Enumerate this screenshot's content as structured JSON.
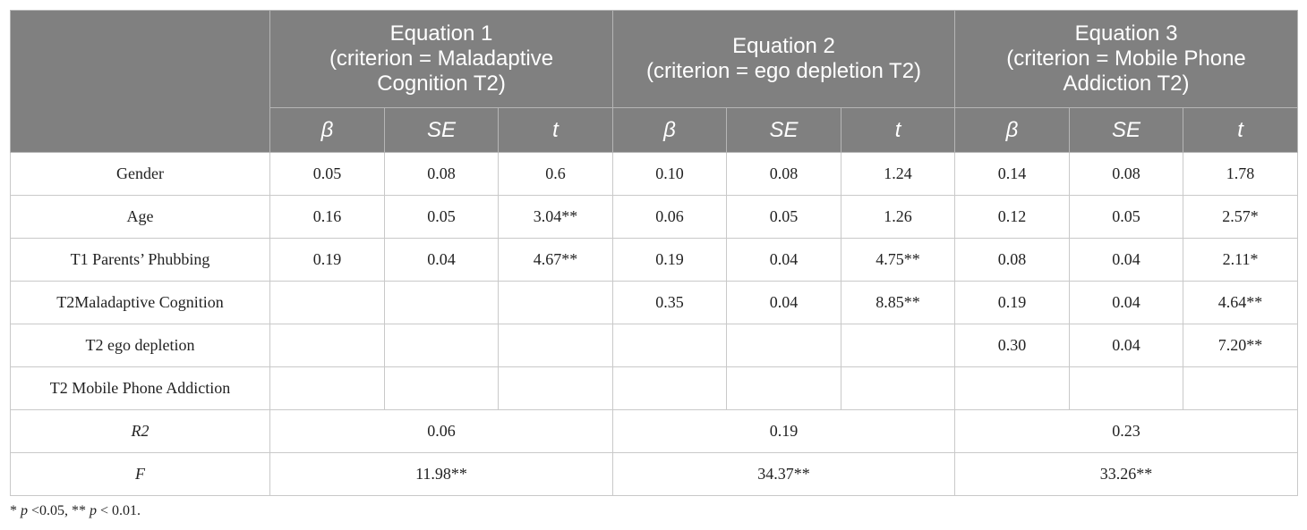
{
  "header": {
    "equations": [
      {
        "line1": "Equation 1",
        "line2": "(criterion = Maladaptive",
        "line3": "Cognition T2)"
      },
      {
        "line1": "Equation 2",
        "line2": "(criterion = ego depletion T2)",
        "line3": ""
      },
      {
        "line1": "Equation 3",
        "line2": "(criterion = Mobile Phone",
        "line3": "Addiction T2)"
      }
    ],
    "sub": [
      "β",
      "SE",
      "t"
    ]
  },
  "rows": [
    {
      "label": "Gender",
      "cells": [
        "0.05",
        "0.08",
        "0.6",
        "0.10",
        "0.08",
        "1.24",
        "0.14",
        "0.08",
        "1.78"
      ]
    },
    {
      "label": "Age",
      "cells": [
        "0.16",
        "0.05",
        "3.04**",
        "0.06",
        "0.05",
        "1.26",
        "0.12",
        "0.05",
        "2.57*"
      ]
    },
    {
      "label": "T1 Parents’ Phubbing",
      "cells": [
        "0.19",
        "0.04",
        "4.67**",
        "0.19",
        "0.04",
        "4.75**",
        "0.08",
        "0.04",
        "2.11*"
      ]
    },
    {
      "label": "T2Maladaptive Cognition",
      "cells": [
        "",
        "",
        "",
        "0.35",
        "0.04",
        "8.85**",
        "0.19",
        "0.04",
        "4.64**"
      ]
    },
    {
      "label": "T2 ego depletion",
      "cells": [
        "",
        "",
        "",
        "",
        "",
        "",
        "0.30",
        "0.04",
        "7.20**"
      ]
    },
    {
      "label": "T2 Mobile Phone Addiction",
      "cells": [
        "",
        "",
        "",
        "",
        "",
        "",
        "",
        "",
        ""
      ]
    }
  ],
  "summary": [
    {
      "label": "R2",
      "values": [
        "0.06",
        "0.19",
        "0.23"
      ]
    },
    {
      "label": "F",
      "values": [
        "11.98**",
        "34.37**",
        "33.26**"
      ]
    }
  ],
  "note": {
    "star1": "* ",
    "p1": "p",
    "text1": " <0.05, ** ",
    "p2": "p",
    "text2": " < 0.01."
  }
}
